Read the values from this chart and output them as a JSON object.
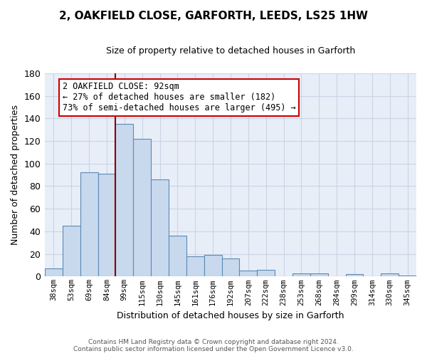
{
  "title": "2, OAKFIELD CLOSE, GARFORTH, LEEDS, LS25 1HW",
  "subtitle": "Size of property relative to detached houses in Garforth",
  "xlabel": "Distribution of detached houses by size in Garforth",
  "ylabel": "Number of detached properties",
  "categories": [
    "38sqm",
    "53sqm",
    "69sqm",
    "84sqm",
    "99sqm",
    "115sqm",
    "130sqm",
    "145sqm",
    "161sqm",
    "176sqm",
    "192sqm",
    "207sqm",
    "222sqm",
    "238sqm",
    "253sqm",
    "268sqm",
    "284sqm",
    "299sqm",
    "314sqm",
    "330sqm",
    "345sqm"
  ],
  "values": [
    7,
    45,
    92,
    91,
    135,
    122,
    86,
    36,
    18,
    19,
    16,
    5,
    6,
    0,
    3,
    3,
    0,
    2,
    0,
    3,
    1
  ],
  "bar_color": "#c8d9ee",
  "bar_edge_color": "#5b8ab5",
  "vline_color": "#8b0000",
  "vline_x_index": 4,
  "annotation_title": "2 OAKFIELD CLOSE: 92sqm",
  "annotation_line1": "← 27% of detached houses are smaller (182)",
  "annotation_line2": "73% of semi-detached houses are larger (495) →",
  "annotation_box_color": "#ffffff",
  "annotation_box_edge": "#cc0000",
  "ylim": [
    0,
    180
  ],
  "yticks": [
    0,
    20,
    40,
    60,
    80,
    100,
    120,
    140,
    160,
    180
  ],
  "footer_line1": "Contains HM Land Registry data © Crown copyright and database right 2024.",
  "footer_line2": "Contains public sector information licensed under the Open Government Licence v3.0.",
  "background_color": "#ffffff",
  "axes_bg_color": "#e8eef8",
  "grid_color": "#c8d4e4"
}
